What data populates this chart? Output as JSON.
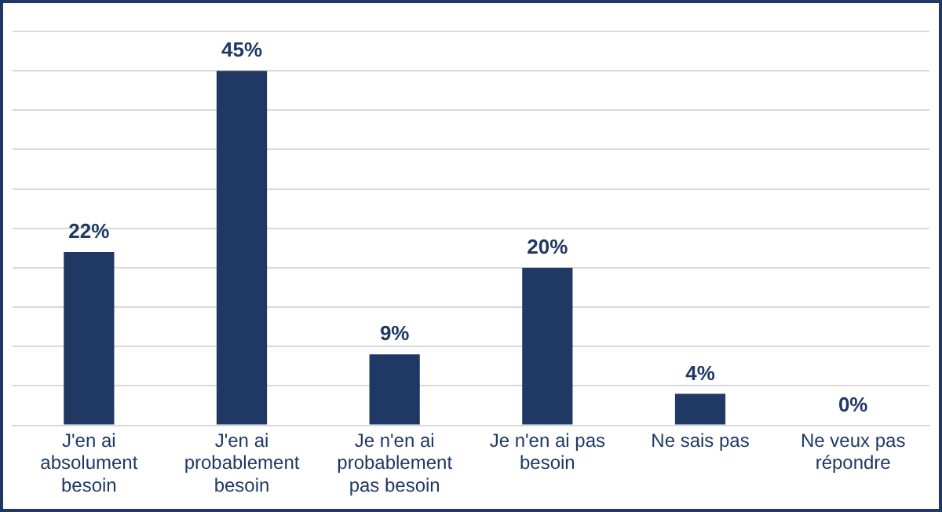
{
  "chart_data": {
    "type": "bar",
    "categories": [
      "J'en ai absolument besoin",
      "J'en ai probablement besoin",
      "Je n'en ai probablement pas besoin",
      "Je n'en ai pas besoin",
      "Ne sais pas",
      "Ne veux pas répondre"
    ],
    "values": [
      22,
      45,
      9,
      20,
      4,
      0
    ],
    "color": "#1f3864",
    "ylim": [
      0,
      50
    ],
    "yticks": [
      {
        "value": 0,
        "label": null
      },
      {
        "value": 5,
        "label": null
      },
      {
        "value": 10,
        "label": null
      },
      {
        "value": 15,
        "label": null
      },
      {
        "value": 20,
        "label": null
      },
      {
        "value": 25,
        "label": null
      },
      {
        "value": 30,
        "label": null
      },
      {
        "value": 35,
        "label": null
      },
      {
        "value": 40,
        "label": null
      },
      {
        "value": 45,
        "label": null
      },
      {
        "value": 50,
        "label": null
      }
    ],
    "value_labels": [
      "22%",
      "45%",
      "9%",
      "20%",
      "4%",
      "0%"
    ],
    "grid": "y",
    "tick_labels": "x",
    "legend": false
  }
}
